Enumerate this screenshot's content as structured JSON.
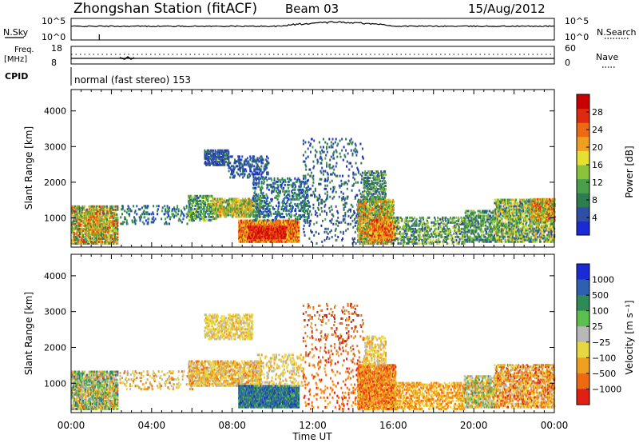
{
  "header": {
    "station": "Zhongshan Station (fitACF)",
    "beam": "Beam 03",
    "date": "15/Aug/2012"
  },
  "top_panels": {
    "nsky_label": "N.Sky",
    "nsky_ticks": [
      "10^5",
      "10^0"
    ],
    "nsearch_label": "N.Search",
    "freq_label": "Freq.",
    "freq_unit": "[MHz]",
    "freq_ticks": [
      "18",
      "8"
    ],
    "nave_ticks": [
      "60",
      "0"
    ],
    "nave_label": "Nave",
    "cpid_label": "CPID",
    "cpid_text": "normal (fast stereo) 153"
  },
  "colors": {
    "power_scale": [
      "#1a2bd6",
      "#2f4fa6",
      "#2e7d4e",
      "#4aa04a",
      "#8ac43a",
      "#e6e030",
      "#f0a020",
      "#ee6a10",
      "#e02a10",
      "#c80000"
    ],
    "velocity_scale": [
      "#1a2bd6",
      "#2f5fb0",
      "#2e8a56",
      "#5cc050",
      "#b8b8b8",
      "#e8d840",
      "#f0a020",
      "#ee6a10",
      "#e02010"
    ]
  },
  "chart_data": [
    {
      "type": "heatmap",
      "id": "power",
      "ylabel": "Slant Range [km]",
      "xlabel": "",
      "x_ticks": [
        "00:00",
        "04:00",
        "08:00",
        "12:00",
        "16:00",
        "20:00",
        "00:00"
      ],
      "xlim_hours": [
        0,
        24
      ],
      "y_ticks": [
        1000,
        2000,
        3000,
        4000
      ],
      "ylim_km": [
        180,
        4600
      ],
      "colorbar_label": "Power [dB]",
      "colorbar_ticks": [
        4,
        8,
        12,
        16,
        20,
        24,
        28
      ],
      "colorbar_range": [
        0,
        32
      ],
      "regions": [
        {
          "t0": 0.0,
          "t1": 2.3,
          "r0": 250,
          "r1": 1300,
          "v0": 6,
          "v1": 28,
          "d": 0.55
        },
        {
          "t0": 0.7,
          "t1": 1.4,
          "r0": 500,
          "r1": 1100,
          "v0": 10,
          "v1": 28,
          "d": 0.7
        },
        {
          "t0": 2.4,
          "t1": 6.0,
          "r0": 800,
          "r1": 1300,
          "v0": 2,
          "v1": 12,
          "d": 0.12
        },
        {
          "t0": 5.8,
          "t1": 7.2,
          "r0": 900,
          "r1": 1600,
          "v0": 4,
          "v1": 18,
          "d": 0.35
        },
        {
          "t0": 7.0,
          "t1": 9.4,
          "r0": 1000,
          "r1": 1500,
          "v0": 8,
          "v1": 24,
          "d": 0.55
        },
        {
          "t0": 6.6,
          "t1": 7.8,
          "r0": 2450,
          "r1": 2900,
          "v0": 2,
          "v1": 8,
          "d": 0.5
        },
        {
          "t0": 7.8,
          "t1": 9.8,
          "r0": 2100,
          "r1": 2700,
          "v0": 2,
          "v1": 8,
          "d": 0.25
        },
        {
          "t0": 8.3,
          "t1": 11.3,
          "r0": 300,
          "r1": 900,
          "v0": 16,
          "v1": 30,
          "d": 0.85
        },
        {
          "t0": 8.8,
          "t1": 10.6,
          "r0": 400,
          "r1": 750,
          "v0": 24,
          "v1": 31,
          "d": 0.9
        },
        {
          "t0": 9.0,
          "t1": 11.8,
          "r0": 900,
          "r1": 2100,
          "v0": 2,
          "v1": 12,
          "d": 0.2
        },
        {
          "t0": 11.5,
          "t1": 14.5,
          "r0": 250,
          "r1": 3200,
          "v0": 2,
          "v1": 10,
          "d": 0.07
        },
        {
          "t0": 14.2,
          "t1": 16.0,
          "r0": 250,
          "r1": 1500,
          "v0": 6,
          "v1": 26,
          "d": 0.65
        },
        {
          "t0": 14.8,
          "t1": 16.1,
          "r0": 350,
          "r1": 900,
          "v0": 16,
          "v1": 30,
          "d": 0.6
        },
        {
          "t0": 14.5,
          "t1": 15.6,
          "r0": 1500,
          "r1": 2300,
          "v0": 4,
          "v1": 14,
          "d": 0.3
        },
        {
          "t0": 16.0,
          "t1": 19.5,
          "r0": 250,
          "r1": 1000,
          "v0": 4,
          "v1": 18,
          "d": 0.3
        },
        {
          "t0": 19.5,
          "t1": 21.0,
          "r0": 300,
          "r1": 1200,
          "v0": 4,
          "v1": 16,
          "d": 0.4
        },
        {
          "t0": 21.0,
          "t1": 24.0,
          "r0": 300,
          "r1": 1500,
          "v0": 4,
          "v1": 22,
          "d": 0.45
        },
        {
          "t0": 22.8,
          "t1": 24.0,
          "r0": 900,
          "r1": 1500,
          "v0": 10,
          "v1": 28,
          "d": 0.6
        }
      ]
    },
    {
      "type": "heatmap",
      "id": "velocity",
      "ylabel": "Slant Range [km]",
      "xlabel": "Time UT",
      "x_ticks": [
        "00:00",
        "04:00",
        "08:00",
        "12:00",
        "16:00",
        "20:00",
        "00:00"
      ],
      "xlim_hours": [
        0,
        24
      ],
      "y_ticks": [
        1000,
        2000,
        3000,
        4000
      ],
      "ylim_km": [
        180,
        4600
      ],
      "colorbar_label": "Velocity [m s⁻¹]",
      "colorbar_ticks": [
        "1000",
        "500",
        "100",
        "25",
        "−25",
        "−100",
        "−500",
        "−1000"
      ],
      "regions": [
        {
          "t0": 0.0,
          "t1": 2.3,
          "r0": 250,
          "r1": 1300,
          "c0": 1,
          "c1": 7,
          "d": 0.55
        },
        {
          "t0": 2.4,
          "t1": 6.0,
          "r0": 800,
          "r1": 1300,
          "c0": 4,
          "c1": 7,
          "d": 0.12
        },
        {
          "t0": 5.8,
          "t1": 9.4,
          "r0": 900,
          "r1": 1600,
          "c0": 4,
          "c1": 7,
          "d": 0.45
        },
        {
          "t0": 6.6,
          "t1": 9.0,
          "r0": 2200,
          "r1": 2900,
          "c0": 4,
          "c1": 6,
          "d": 0.35
        },
        {
          "t0": 8.3,
          "t1": 11.3,
          "r0": 300,
          "r1": 900,
          "c0": 0,
          "c1": 3,
          "d": 0.85
        },
        {
          "t0": 9.2,
          "t1": 11.5,
          "r0": 900,
          "r1": 1800,
          "c0": 4,
          "c1": 6,
          "d": 0.15
        },
        {
          "t0": 11.5,
          "t1": 14.5,
          "r0": 250,
          "r1": 3200,
          "c0": 6,
          "c1": 8,
          "d": 0.07
        },
        {
          "t0": 14.2,
          "t1": 16.1,
          "r0": 250,
          "r1": 1500,
          "c0": 5,
          "c1": 8,
          "d": 0.65
        },
        {
          "t0": 14.5,
          "t1": 15.6,
          "r0": 1500,
          "r1": 2300,
          "c0": 4,
          "c1": 6,
          "d": 0.3
        },
        {
          "t0": 16.0,
          "t1": 19.5,
          "r0": 250,
          "r1": 1000,
          "c0": 5,
          "c1": 7,
          "d": 0.3
        },
        {
          "t0": 19.5,
          "t1": 21.0,
          "r0": 300,
          "r1": 1200,
          "c0": 2,
          "c1": 7,
          "d": 0.4
        },
        {
          "t0": 21.0,
          "t1": 24.0,
          "r0": 300,
          "r1": 1500,
          "c0": 4,
          "c1": 8,
          "d": 0.45
        }
      ]
    }
  ]
}
